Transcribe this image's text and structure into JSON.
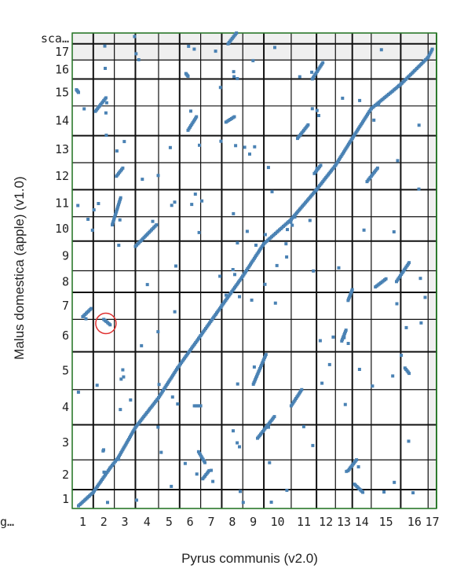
{
  "chart_data": {
    "type": "scatter",
    "xlabel": "Pyrus communis (v2.0)",
    "ylabel": "Malus domestica (apple) (v1.0)",
    "x_ticks": [
      "1",
      "2",
      "3",
      "4",
      "5",
      "6",
      "7",
      "8",
      "9",
      "10",
      "11",
      "12",
      "13",
      "14",
      "15",
      "16",
      "17",
      "tig…"
    ],
    "y_ticks": [
      "1",
      "2",
      "3",
      "4",
      "5",
      "6",
      "7",
      "8",
      "9",
      "10",
      "11",
      "12",
      "13",
      "14",
      "15",
      "16",
      "17",
      "sca…",
      "sca…"
    ],
    "x_bounds": [
      0,
      1.0,
      2.0,
      3.0,
      4.1,
      5.1,
      6.1,
      7.1,
      8.1,
      9.1,
      10.4,
      11.6,
      12.5,
      13.3,
      14.2,
      15.6,
      16.9,
      17.3
    ],
    "y_bounds": [
      0,
      0.7,
      1.8,
      3.1,
      4.4,
      5.8,
      7.0,
      8.0,
      8.8,
      9.9,
      10.8,
      11.8,
      12.8,
      13.8,
      14.9,
      15.9,
      16.6,
      17.2,
      17.6
    ],
    "series": [
      {
        "segments": [
          [
            0.3,
            0.1,
            1.0,
            0.6
          ],
          [
            1.0,
            0.6,
            1.8,
            1.5
          ],
          [
            1.8,
            1.5,
            2.2,
            1.9
          ],
          [
            2.2,
            1.9,
            3.0,
            3.0
          ],
          [
            3.0,
            3.0,
            4.1,
            4.1
          ],
          [
            4.1,
            4.1,
            5.0,
            5.2
          ],
          [
            5.0,
            5.2,
            6.1,
            6.4
          ],
          [
            6.1,
            6.4,
            7.1,
            7.5
          ],
          [
            7.1,
            7.5,
            8.1,
            8.6
          ],
          [
            8.1,
            8.6,
            9.1,
            9.8
          ],
          [
            9.1,
            9.8,
            10.4,
            10.7
          ],
          [
            10.4,
            10.7,
            11.6,
            11.8
          ],
          [
            11.6,
            11.8,
            12.5,
            12.7
          ],
          [
            12.5,
            12.7,
            13.3,
            13.7
          ],
          [
            13.3,
            13.7,
            14.2,
            14.8
          ],
          [
            14.2,
            14.8,
            15.6,
            15.7
          ],
          [
            15.6,
            15.7,
            16.9,
            16.7
          ],
          [
            16.9,
            16.7,
            17.1,
            17.0
          ]
        ]
      },
      {
        "segments": [
          [
            0.2,
            15.5,
            0.3,
            15.4
          ],
          [
            0.5,
            7.1,
            0.9,
            7.4
          ],
          [
            1.1,
            14.7,
            1.6,
            15.2
          ],
          [
            1.5,
            7.0,
            1.8,
            6.8
          ],
          [
            1.9,
            10.5,
            2.3,
            11.5
          ],
          [
            2.1,
            12.3,
            2.4,
            12.6
          ],
          [
            3.0,
            9.7,
            4.0,
            10.5
          ],
          [
            5.4,
            16.1,
            5.5,
            16.0
          ],
          [
            5.5,
            14.0,
            5.9,
            14.5
          ],
          [
            5.8,
            3.8,
            6.1,
            3.8
          ],
          [
            6.0,
            2.1,
            6.3,
            1.7
          ],
          [
            6.2,
            1.1,
            6.5,
            1.4
          ],
          [
            7.3,
            14.3,
            7.7,
            14.5
          ],
          [
            7.4,
            17.2,
            7.8,
            17.6
          ],
          [
            8.6,
            4.6,
            9.2,
            5.7
          ],
          [
            8.8,
            2.6,
            9.6,
            3.4
          ],
          [
            10.4,
            3.8,
            10.9,
            4.4
          ],
          [
            10.7,
            13.7,
            11.2,
            14.2
          ],
          [
            11.4,
            15.9,
            11.9,
            16.5
          ],
          [
            11.5,
            12.4,
            11.8,
            12.7
          ],
          [
            12.8,
            6.2,
            13.0,
            6.6
          ],
          [
            13.1,
            7.7,
            13.3,
            8.1
          ],
          [
            13.1,
            1.4,
            13.5,
            1.8
          ],
          [
            13.4,
            0.9,
            13.8,
            0.6
          ],
          [
            14.0,
            12.1,
            14.5,
            12.6
          ],
          [
            14.4,
            8.2,
            14.9,
            8.5
          ],
          [
            15.4,
            8.4,
            16.0,
            9.1
          ],
          [
            15.8,
            5.2,
            16.0,
            5.0
          ]
        ]
      }
    ],
    "annotation": {
      "x": 1.6,
      "y": 6.85
    }
  }
}
